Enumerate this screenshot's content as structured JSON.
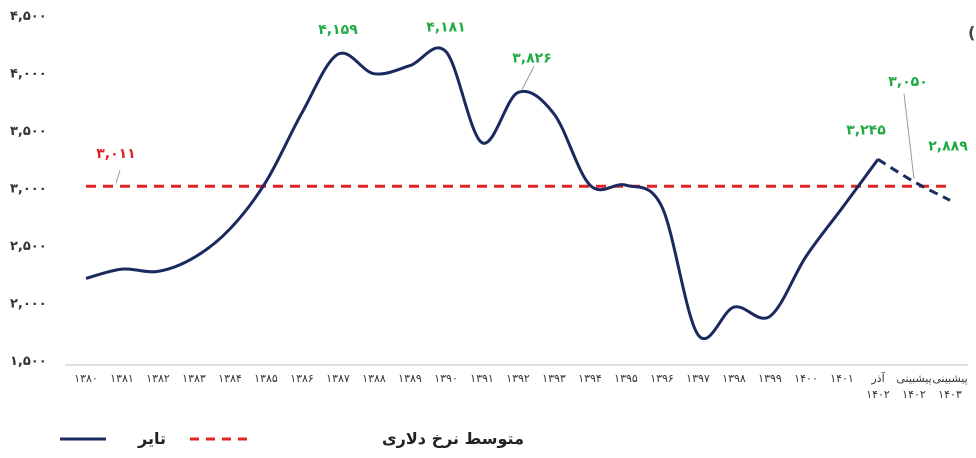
{
  "chart_data": {
    "type": "line",
    "title": "نرخ دلاری تایر پکرمان (بر حسب تن)",
    "xlabel": "",
    "ylabel": "",
    "ylim": [
      1500,
      4500
    ],
    "yticks": [
      1500,
      2000,
      2500,
      3000,
      3500,
      4000,
      4500
    ],
    "ytick_labels": [
      "۱,۵۰۰",
      "۲,۰۰۰",
      "۲,۵۰۰",
      "۳,۰۰۰",
      "۳,۵۰۰",
      "۴,۰۰۰",
      "۴,۵۰۰"
    ],
    "categories": [
      "۱۳۸۰",
      "۱۳۸۱",
      "۱۳۸۲",
      "۱۳۸۳",
      "۱۳۸۴",
      "۱۳۸۵",
      "۱۳۸۶",
      "۱۳۸۷",
      "۱۳۸۸",
      "۱۳۸۹",
      "۱۳۹۰",
      "۱۳۹۱",
      "۱۳۹۲",
      "۱۳۹۳",
      "۱۳۹۴",
      "۱۳۹۵",
      "۱۳۹۶",
      "۱۳۹۷",
      "۱۳۹۸",
      "۱۳۹۹",
      "۱۴۰۰",
      "۱۴۰۱",
      "آذر ۱۴۰۲",
      "پیشبینی ۱۴۰۲",
      "پیشبینی ۱۴۰۳"
    ],
    "series": [
      {
        "name": "تایر",
        "color": "#1b2a5e",
        "values": [
          2210,
          2290,
          2270,
          2390,
          2640,
          3050,
          3650,
          4159,
          3990,
          4060,
          4181,
          3390,
          3826,
          3640,
          3020,
          3020,
          2830,
          1720,
          1960,
          1880,
          2400,
          2820,
          3245,
          3050,
          2889
        ],
        "forecast_from_index": 22
      },
      {
        "name": "متوسط نرخ دلاری",
        "color": "#e02424",
        "dashed": true,
        "value": 3011
      }
    ],
    "annotations": [
      {
        "index": 0,
        "value": 3011,
        "text": "۳,۰۱۱",
        "color": "#e02424"
      },
      {
        "index": 7,
        "value": 4159,
        "text": "۴,۱۵۹",
        "color": "#22aa44"
      },
      {
        "index": 10,
        "value": 4181,
        "text": "۴,۱۸۱",
        "color": "#22aa44"
      },
      {
        "index": 12,
        "value": 3826,
        "text": "۳,۸۲۶",
        "color": "#22aa44"
      },
      {
        "index": 22,
        "value": 3245,
        "text": "۳,۲۴۵",
        "color": "#22aa44"
      },
      {
        "index": 23,
        "value": 3050,
        "text": "۳,۰۵۰",
        "color": "#22aa44"
      },
      {
        "index": 24,
        "value": 2889,
        "text": "۲,۸۸۹",
        "color": "#22aa44"
      }
    ],
    "legend_position": "bottom",
    "grid": false
  },
  "legend": {
    "items": [
      {
        "label": "تایر",
        "color": "#1b2a5e",
        "dashed": false
      },
      {
        "label": "متوسط نرخ دلاری",
        "color": "#e02424",
        "dashed": true
      }
    ]
  }
}
